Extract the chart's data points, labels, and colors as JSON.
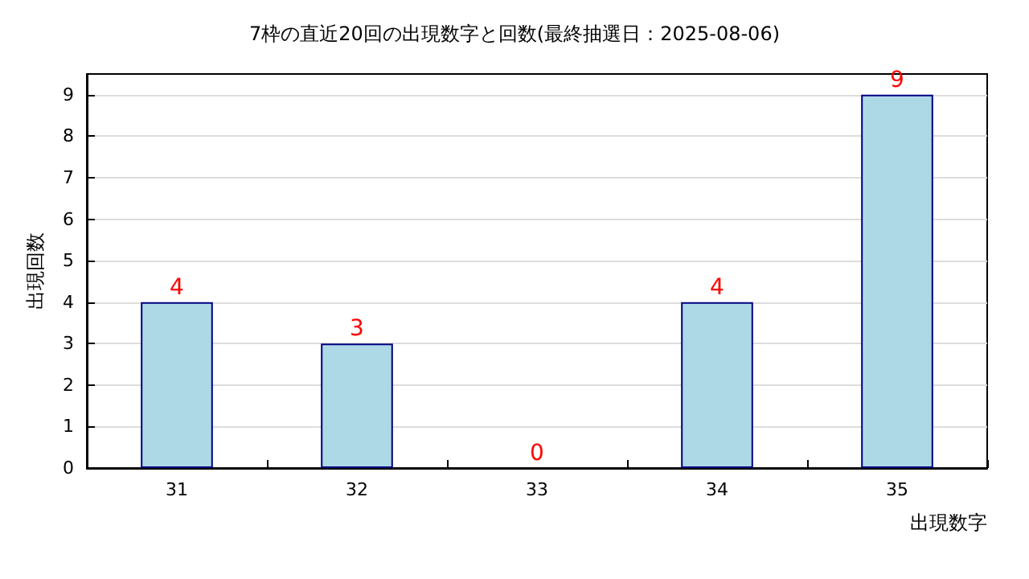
{
  "chart_data": {
    "type": "bar",
    "title": "7枠の直近20回の出現数字と回数(最終抽選日：2025-08-06)",
    "xlabel": "出現数字",
    "ylabel": "出現回数",
    "categories": [
      "31",
      "32",
      "33",
      "34",
      "35"
    ],
    "values": [
      4,
      3,
      0,
      4,
      9
    ],
    "color": "#add8e6",
    "ylim": [
      0,
      9.5
    ],
    "yticks": [
      0,
      1,
      2,
      3,
      4,
      5,
      6,
      7,
      8,
      9
    ],
    "grid": "y",
    "data_labels": true
  }
}
